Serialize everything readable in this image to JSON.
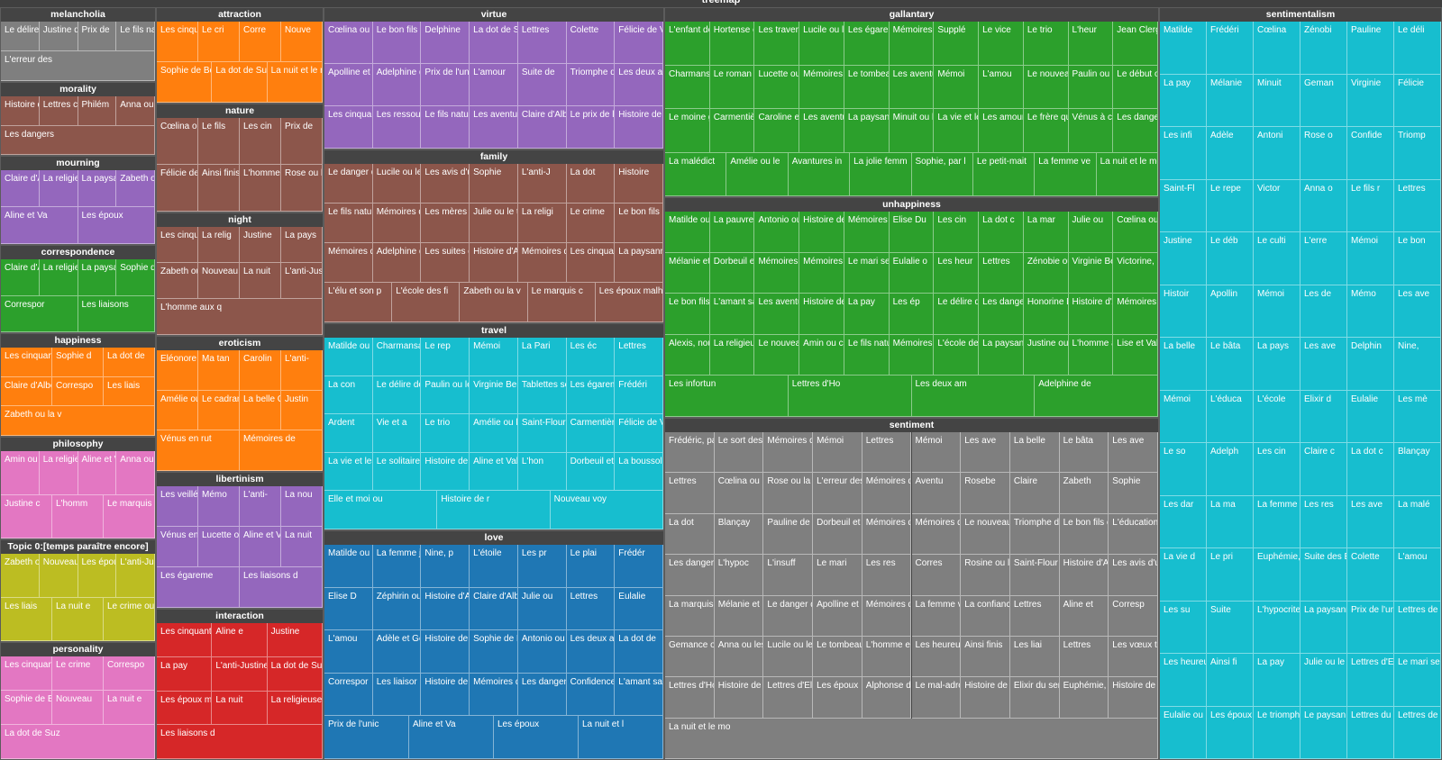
{
  "title": "treemap",
  "chart_data": {
    "type": "treemap",
    "title": "treemap",
    "groups": [
      {
        "name": "melancholia",
        "color": "#7f7f7f",
        "items": [
          "Le délire des",
          "Justine d'Ara",
          "Prix de",
          "Le fils nature",
          "L'erreur des"
        ]
      },
      {
        "name": "morality",
        "color": "#8c564b",
        "items": [
          "Histoire de R",
          "Lettres curie",
          "Philém",
          "Anna ou les",
          "Les dangers"
        ]
      },
      {
        "name": "mourning",
        "color": "#9467bd",
        "items": [
          "Claire d'All",
          "La religieu",
          "La paysann",
          "Zabeth ou",
          "Aline et Va",
          "Les époux"
        ]
      },
      {
        "name": "correspondence",
        "color": "#2ca02c",
        "items": [
          "Claire d'All",
          "La religieu",
          "La paysann",
          "Sophie de",
          "Correspor",
          "Les liaisons"
        ]
      },
      {
        "name": "happiness",
        "color": "#ff7f0e",
        "items": [
          "Les cinquante",
          "Sophie d",
          "La dot de",
          "Claire d'Albe,",
          "Correspo",
          "Les liais",
          "Zabeth ou la v"
        ]
      },
      {
        "name": "philosophy",
        "color": "#e377c2",
        "items": [
          "Amin ou ces",
          "La religie",
          "Aline et V",
          "Anna ou les s",
          "Justine c",
          "L'homm",
          "Le marquis de"
        ]
      },
      {
        "name": "Topic 0:[temps paraître encore]",
        "color": "#bcbd22",
        "items": [
          "Zabeth ou la v",
          "Nouveau",
          "Les époux",
          "L'anti-Justine",
          "Les liais",
          "La nuit e",
          "Le crime ou le"
        ]
      },
      {
        "name": "personality",
        "color": "#e377c2",
        "items": [
          "Les cinquante",
          "Le crime",
          "Correspo",
          "Sophie de Bea",
          "Nouveau",
          "La nuit e",
          "La dot de Suz"
        ]
      },
      {
        "name": "attraction",
        "color": "#ff7f0e",
        "items": [
          "Les cinquante",
          "Le cri",
          "Corre",
          "Nouve",
          "Sophie de Beau",
          "La dot de Suze",
          "La nuit et le moment"
        ]
      },
      {
        "name": "nature",
        "color": "#8c564b",
        "items": [
          "Cœlina ou l'e",
          "Le fils",
          "Les cin",
          "Prix de",
          "Félicie de Vilr",
          "Ainsi finiss",
          "L'homme a",
          "Rose ou la be"
        ]
      },
      {
        "name": "night",
        "color": "#8c564b",
        "items": [
          "Les cinquan",
          "La relig",
          "Justine",
          "La pays",
          "Zabeth ou la",
          "Nouveau voyage",
          "La nuit",
          "L'anti-Justin",
          "L'homme aux q"
        ]
      },
      {
        "name": "eroticism",
        "color": "#ff7f0e",
        "items": [
          "Eléonore ou l'",
          "Ma tan",
          "Carolin",
          "L'anti-",
          "Amélie ou les",
          "Le cadran des",
          "La belle Cauch",
          "Justin",
          "Vénus en rut",
          "Mémoires de"
        ]
      },
      {
        "name": "libertinism",
        "color": "#9467bd",
        "items": [
          "Les veillées d",
          "Mémo",
          "L'anti-",
          "La nou",
          "Vénus en rut",
          "Lucette ou les",
          "Aline et Valcou",
          "La nuit",
          "Les égareme",
          "Les liaisons d"
        ]
      },
      {
        "name": "interaction",
        "color": "#d62728",
        "items": [
          "Les cinquante",
          "Aline e",
          "Justine",
          "La pay",
          "L'anti-Justine",
          "La dot de Suz",
          "Les époux ma",
          "La nuit",
          "La religieuse,",
          "Les liaisons d"
        ]
      },
      {
        "name": "virtue",
        "color": "#9467bd",
        "items": [
          "Cœlina ou l'e",
          "Le bon fils ou",
          "Delphine",
          "La dot de Suz",
          "Lettres",
          "Colette",
          "Félicie de Vilr",
          "Apolline et Da",
          "Adelphine de",
          "Prix de l'union",
          "L'amour",
          "Suite de",
          "Triomphe de",
          "Les deux ami",
          "Les cinquante",
          "Les ressourc",
          "Le fils nature",
          "Les aventure",
          "Claire d'Albe,",
          "Le prix de la v",
          "Histoire de mons"
        ]
      },
      {
        "name": "family",
        "color": "#8c564b",
        "items": [
          "Le danger des",
          "Lucile ou les",
          "Les avis d'un",
          "Sophie",
          "L'anti-J",
          "La dot",
          "Histoire",
          "Le fils naturel",
          "Mémoires de",
          "Les mères riv",
          "Julie ou le tri",
          "La religi",
          "Le crime",
          "Le bon fils ou",
          "Mémoires de",
          "Adelphine de",
          "Les suites d",
          "Histoire d'Aga",
          "Mémoires de",
          "Les cinquante",
          "La paysanne perv",
          "L'élu et son p",
          "L'école des fi",
          "Zabeth ou la v",
          "Le marquis c",
          "Les époux malhe"
        ]
      },
      {
        "name": "travel",
        "color": "#17becf",
        "items": [
          "Matilde ou la",
          "Charmansang",
          "Le rep",
          "Mémoi",
          "La Pari",
          "Les éc",
          "Lettres",
          "La con",
          "Le délire des",
          "Paulin ou les",
          "Virginie Belle",
          "Tablettes sen",
          "Les égareme",
          "Frédéri",
          "Ardent",
          "Vie et a",
          "Le trio",
          "Amélie ou les",
          "Saint-Flour et",
          "Carmentière",
          "Félicie de Vilr",
          "La vie et les a",
          "Le solitaire d",
          "Histoire de l",
          "Aline et Valc",
          "L'hon",
          "Dorbeuil et Cé",
          "La boussole r",
          "Elle et moi ou",
          "Histoire de r",
          "Nouveau voy"
        ]
      },
      {
        "name": "love",
        "color": "#1f77b4",
        "items": [
          "Matilde ou la",
          "La femme jal",
          "Nine, p",
          "L'étoile",
          "Les pr",
          "Le plai",
          "Frédér",
          "Elise D",
          "Zéphirin ou l'",
          "Histoire d'Ag",
          "Claire d'Albe",
          "Julie ou",
          "Lettres",
          "Eulalie",
          "L'amou",
          "Adèle et Gern",
          "Histoire de m",
          "Sophie de Be",
          "Antonio ou le",
          "Les deux am",
          "La dot de",
          "Correspor",
          "Les liaisor",
          "Histoire de Ro",
          "Mémoires de",
          "Les dangers",
          "Confidence d",
          "L'amant salar",
          "Prix de l'unic",
          "Aline et Va",
          "Les époux",
          "La nuit et l"
        ]
      },
      {
        "name": "gallantary",
        "color": "#2ca02c",
        "items": [
          "L'enfant de m",
          "Hortense ou",
          "Les travers",
          "Lucile ou les",
          "Les égareme",
          "Mémoires p",
          "Supplé",
          "Le vice",
          "Le trio",
          "L'heur",
          "Jean Clergec",
          "Charmansan",
          "Le roman sa",
          "Lucette ou l",
          "Mémoires de",
          "Le tombeau",
          "Les aventu",
          "Mémoi",
          "L'amou",
          "Le nouveau l",
          "Paulin ou les",
          "Le début ou",
          "Le moine ga",
          "Carmentière",
          "Caroline et S",
          "Les aventu",
          "La paysanne pe",
          "Minuit ou les",
          "La vie et les",
          "Les amours",
          "Le frère que",
          "Vénus à con",
          "Les dangers",
          "La malédict",
          "Amélie ou le",
          "Avantures in",
          "La jolie femm",
          "Sophie, par l",
          "Le petit-mait",
          "La femme ve",
          "La nuit et le mor"
        ]
      },
      {
        "name": "unhappiness",
        "color": "#2ca02c",
        "items": [
          "Matilde ou la",
          "La pauvre re",
          "Antonio ou le",
          "Histoire de la",
          "Mémoires de",
          "Elise Du",
          "Les cin",
          "La dot c",
          "La mar",
          "Julie ou",
          "Cœlina ou l'e",
          "Mélanie et Fé",
          "Dorbeuil et C",
          "Mémoires de",
          "Mémoires d'",
          "Le mari sen",
          "Eulalie o",
          "Les heur",
          "Lettres",
          "Zénobie ou la",
          "Virginie Belle",
          "Victorine, pa",
          "Le bon fils ou",
          "L'amant sala",
          "Les aventur",
          "Histoire de m",
          "La pay",
          "Les ép",
          "Le délire des",
          "Les dangers",
          "Honorine Der",
          "Histoire d'Ag",
          "Mémoires de",
          "Alexis, nouv",
          "La religieuse",
          "Le nouveau F",
          "Amin ou ces",
          "Le fils nature",
          "Mémoires de",
          "L'école des f",
          "La paysann",
          "Justine ou les",
          "L'homme aux",
          "Lise et Valco",
          "Les infortun",
          "Lettres d'Ho",
          "Les deux am",
          "Adelphine de"
        ]
      },
      {
        "name": "sentiment",
        "color": "#7f7f7f",
        "items": [
          "Frédéric, par",
          "Le sort des f",
          "Mémoires de",
          "Mémoi",
          "Lettres",
          "Mémoi",
          "Les ave",
          "La belle",
          "Le bâta",
          "Les ave",
          "Lettres",
          "Cœlina ou l'e",
          "Rose ou la be",
          "L'erreur des",
          "Mémoires d",
          "Aventu",
          "Rosebe",
          "Claire",
          "Zabeth",
          "Sophie",
          "La dot",
          "Blançay",
          "Pauline de Ve",
          "Dorbeuil et C",
          "Mémoires de",
          "Mémoires d",
          "Le nouveau F",
          "Triomphe de",
          "Le bon fils ou",
          "L'éducation",
          "Les danger",
          "L'hypoc",
          "L'insuff",
          "Le mari",
          "Les res",
          "Corres",
          "Rosine ou le",
          "Saint-Flour e",
          "Histoire d'Ag",
          "Les avis d'u",
          "La marquise",
          "Mélanie et Fé",
          "Le danger de",
          "Apolline et Da",
          "Mémoires d",
          "La femme v",
          "La confiance",
          "Lettres",
          "Aline et",
          "Corresp",
          "Gemance ou",
          "Anna ou les",
          "Lucile ou les",
          "Le tombeau",
          "L'homme e",
          "Les heureux",
          "Ainsi finis",
          "Les liai",
          "Lettres",
          "Les vœux tém",
          "Lettres d'Hor",
          "Histoire de m",
          "Lettres d'Elis",
          "Les époux",
          "Alphonse d'A",
          "Le mal-adroit",
          "Histoire de m",
          "Elixir du sen",
          "Euphémie,",
          "Histoire de m",
          "La nuit et le mo"
        ]
      },
      {
        "name": "sentimentalism",
        "color": "#17becf",
        "items": [
          "Matilde",
          "Frédéri",
          "Cœlina",
          "Zénobi",
          "Pauline",
          "Le déli",
          "La pay",
          "Mélanie",
          "Minuit",
          "Geman",
          "Virginie",
          "Félicie",
          "Les infi",
          "Adèle",
          "Antoni",
          "Rose o",
          "Confide",
          "Triomp",
          "Saint-Fl",
          "Le repe",
          "Victor",
          "Anna o",
          "Le fils r",
          "Lettres",
          "Justine",
          "Le déb",
          "Le culti",
          "L'erre",
          "Mémoi",
          "Le bon",
          "Histoir",
          "Apollin",
          "Mémoi",
          "Les de",
          "Mémo",
          "Les ave",
          "La belle",
          "Le bâta",
          "La pays",
          "Les ave",
          "Delphin",
          "Nine,",
          "Mémoi",
          "L'éduca",
          "L'école",
          "Elixir d",
          "Eulalie",
          "Les mè",
          "Le so",
          "Adelph",
          "Les cin",
          "Claire c",
          "La dot c",
          "Blançay",
          "Les dar",
          "La ma",
          "La femme ver",
          "Les res",
          "Les ave",
          "La malé",
          "La vie d",
          "Le pri",
          "Euphémie, no",
          "Suite des Ep",
          "Colette",
          "L'amou",
          "Les su",
          "Suite",
          "L'hypocrite de",
          "La paysanne",
          "Prix de l'union",
          "Lettres de m",
          "Les heureux",
          "Ainsi fi",
          "La pay",
          "Julie ou le tri",
          "Lettres d'Eli",
          "Le mari senti",
          "Eulalie ou les",
          "Les époux mal",
          "Le triomphe c",
          "Le paysan pe",
          "Lettres du l",
          "Lettres de mil"
        ]
      }
    ]
  }
}
